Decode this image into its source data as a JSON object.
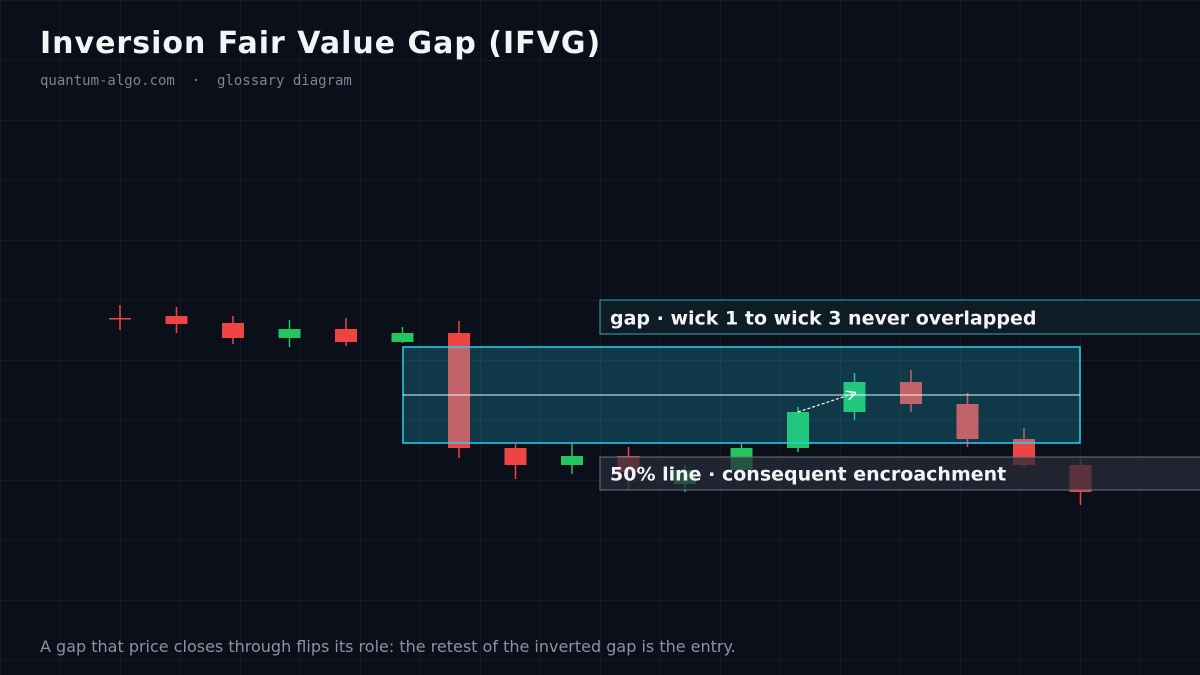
{
  "header": {
    "title": "Inversion Fair Value Gap (IFVG)",
    "subtitle": "quantum-algo.com  ·  glossary diagram"
  },
  "chart_data": {
    "type": "candlestick",
    "candles": [
      {
        "open": 282,
        "high": 295,
        "low": 270,
        "close": 282
      },
      {
        "open": 284,
        "high": 293,
        "low": 267,
        "close": 276
      },
      {
        "open": 277,
        "high": 284,
        "low": 256,
        "close": 262
      },
      {
        "open": 262,
        "high": 280,
        "low": 253,
        "close": 271
      },
      {
        "open": 271,
        "high": 282,
        "low": 254,
        "close": 258
      },
      {
        "open": 258,
        "high": 273,
        "low": 257,
        "close": 267
      },
      {
        "open": 267,
        "high": 279,
        "low": 142,
        "close": 152
      },
      {
        "open": 152,
        "high": 156,
        "low": 121,
        "close": 135
      },
      {
        "open": 135,
        "high": 156,
        "low": 126,
        "close": 144
      },
      {
        "open": 144,
        "high": 153,
        "low": 110,
        "close": 128
      },
      {
        "open": 116,
        "high": 135,
        "low": 108,
        "close": 130
      },
      {
        "open": 130,
        "high": 156,
        "low": 126,
        "close": 152
      },
      {
        "open": 152,
        "high": 193,
        "low": 148,
        "close": 188
      },
      {
        "open": 188,
        "high": 227,
        "low": 180,
        "close": 218
      },
      {
        "open": 218,
        "high": 230,
        "low": 188,
        "close": 196
      },
      {
        "open": 196,
        "high": 207,
        "low": 153,
        "close": 161
      },
      {
        "open": 161,
        "high": 172,
        "low": 132,
        "close": 135
      },
      {
        "open": 135,
        "high": 141,
        "low": 95,
        "close": 108
      }
    ],
    "up_color": "#22c55e",
    "down_color": "#ef4444",
    "gap": {
      "top": 253,
      "bottom": 157,
      "color": "#22d3ee"
    },
    "annotations": [
      "gap · wick 1 to wick 3 never overlapped",
      "50% line · consequent encroachment"
    ]
  },
  "footer": {
    "caption": "A gap that price closes through flips its role: the retest of the inverted gap is the entry."
  }
}
